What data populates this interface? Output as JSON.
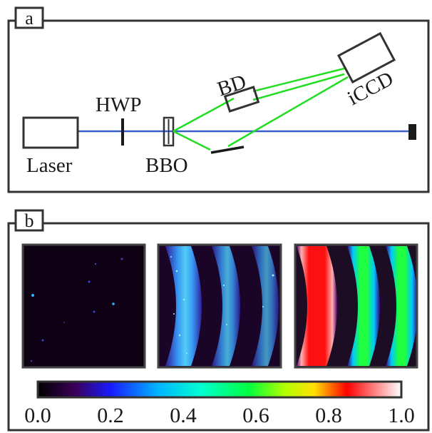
{
  "panel_a": {
    "tag": "a",
    "labels": {
      "laser": "Laser",
      "hwp": "HWP",
      "bbo": "BBO",
      "bd": "BD",
      "iccd": "iCCD"
    }
  },
  "panel_b": {
    "tag": "b",
    "colorbar": {
      "ticks": [
        "0.0",
        "0.2",
        "0.4",
        "0.6",
        "0.8",
        "1.0"
      ],
      "range": [
        0.0,
        1.0
      ],
      "colormap": [
        "#000000",
        "#3a0055",
        "#1a1aff",
        "#00b4ff",
        "#00ffd0",
        "#00ff40",
        "#b4ff00",
        "#ffe000",
        "#ff0000",
        "#ffffff"
      ]
    }
  },
  "colors": {
    "pump_beam": "#3a5fcd",
    "photon_paths": "#22dd22",
    "frame": "#333333"
  }
}
